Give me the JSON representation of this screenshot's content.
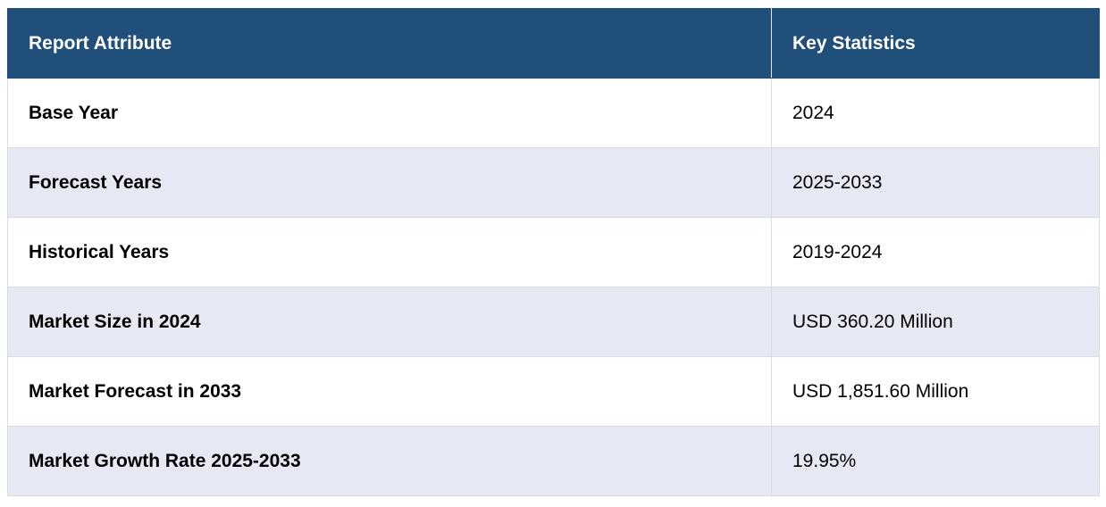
{
  "table": {
    "headers": [
      "Report Attribute",
      "Key Statistics"
    ],
    "rows": [
      {
        "attribute": "Base Year",
        "value": "2024"
      },
      {
        "attribute": "Forecast Years",
        "value": "2025-2033"
      },
      {
        "attribute": "Historical Years",
        "value": "2019-2024"
      },
      {
        "attribute": "Market Size in 2024",
        "value": "USD 360.20 Million"
      },
      {
        "attribute": "Market Forecast in 2033",
        "value": "USD 1,851.60 Million"
      },
      {
        "attribute": "Market Growth Rate 2025-2033",
        "value": "19.95%"
      }
    ]
  },
  "colors": {
    "header_bg": "#204f7a",
    "alt_row_bg": "#e6e9f4",
    "border": "#d9dbe3"
  }
}
